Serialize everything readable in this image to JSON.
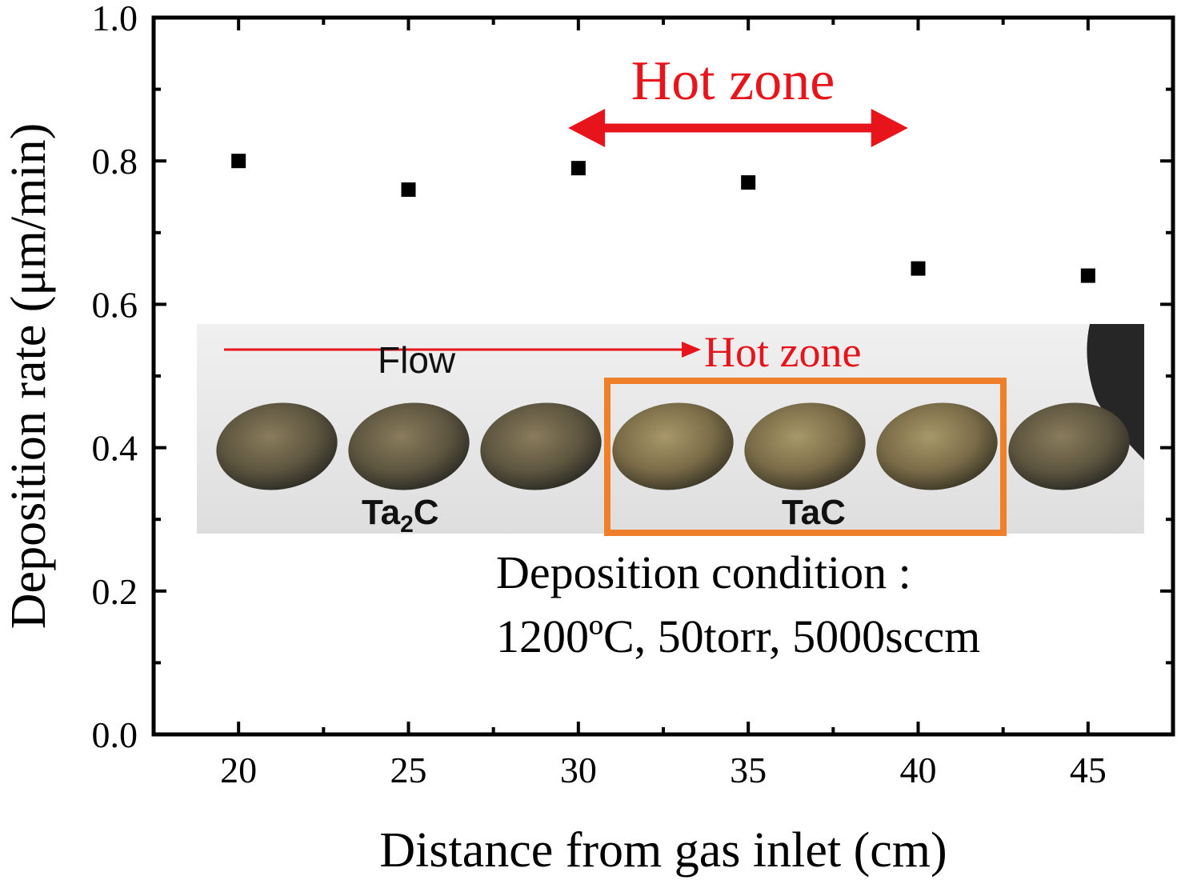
{
  "chart_data": {
    "type": "scatter",
    "xlabel": "Distance from gas inlet (cm)",
    "ylabel": "Deposition rate (μm/min)",
    "xlim": [
      17.5,
      47.5
    ],
    "ylim": [
      0.0,
      1.0
    ],
    "xticks": [
      20,
      25,
      30,
      35,
      40,
      45
    ],
    "xtick_labels": [
      "20",
      "25",
      "30",
      "35",
      "40",
      "45"
    ],
    "yticks": [
      0.0,
      0.2,
      0.4,
      0.6,
      0.8,
      1.0
    ],
    "ytick_labels": [
      "0.0",
      "0.2",
      "0.4",
      "0.6",
      "0.8",
      "1.0"
    ],
    "grid": false,
    "series": [
      {
        "color": "#000000",
        "marker": "square",
        "x": [
          20,
          25,
          30,
          35,
          40,
          45
        ],
        "y": [
          0.8,
          0.76,
          0.79,
          0.77,
          0.65,
          0.64
        ]
      }
    ],
    "annotations": {
      "hot_zone_label": "Hot zone",
      "hot_zone_range": [
        29.7,
        39.7
      ],
      "hot_zone_color": "#e8141b",
      "deposition_condition_line1": "Deposition condition :",
      "deposition_condition_line2": "1200ºC, 50torr, 5000sccm"
    },
    "inset_photo": {
      "flow_label": "Flow",
      "hot_zone_label": "Hot zone",
      "sample_label_left_main": "Ta",
      "sample_label_left_sub": "2",
      "sample_label_left_tail": "C",
      "sample_label_right": "TaC",
      "box_color": "#f07f2a",
      "arrow_color": "#e8141b",
      "sample_count": 7
    }
  }
}
